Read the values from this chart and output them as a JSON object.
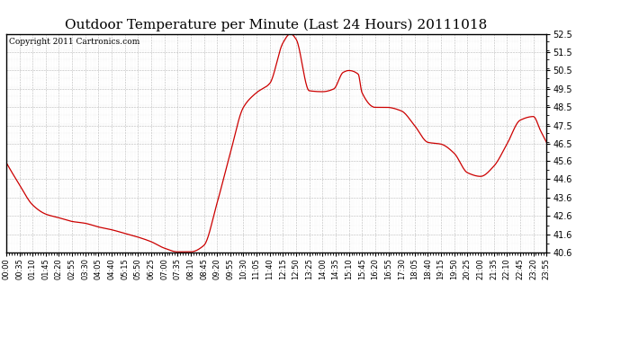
{
  "title": "Outdoor Temperature per Minute (Last 24 Hours) 20111018",
  "copyright": "Copyright 2011 Cartronics.com",
  "line_color": "#cc0000",
  "bg_color": "#ffffff",
  "plot_bg_color": "#ffffff",
  "grid_color": "#b0b0b0",
  "ylim": [
    40.6,
    52.5
  ],
  "yticks": [
    40.6,
    41.6,
    42.6,
    43.6,
    44.6,
    45.6,
    46.5,
    47.5,
    48.5,
    49.5,
    50.5,
    51.5,
    52.5
  ],
  "xtick_labels": [
    "00:00",
    "00:35",
    "01:10",
    "01:45",
    "02:20",
    "02:55",
    "03:30",
    "04:05",
    "04:40",
    "05:15",
    "05:50",
    "06:25",
    "07:00",
    "07:35",
    "08:10",
    "08:45",
    "09:20",
    "09:55",
    "10:30",
    "11:05",
    "11:40",
    "12:15",
    "12:50",
    "13:25",
    "14:00",
    "14:35",
    "15:10",
    "15:45",
    "16:20",
    "16:55",
    "17:30",
    "18:05",
    "18:40",
    "19:15",
    "19:50",
    "20:25",
    "21:00",
    "21:35",
    "22:10",
    "22:45",
    "23:20",
    "23:55"
  ],
  "key_x": [
    0,
    35,
    70,
    105,
    140,
    175,
    210,
    245,
    280,
    315,
    350,
    385,
    420,
    455,
    490,
    525,
    560,
    595,
    630,
    665,
    700,
    735,
    755,
    770,
    805,
    840,
    870,
    895,
    910,
    935,
    945,
    980,
    1010,
    1050,
    1085,
    1120,
    1155,
    1190,
    1225,
    1260,
    1295,
    1330,
    1365,
    1400,
    1420,
    1435
  ],
  "key_y": [
    45.5,
    44.3,
    43.2,
    42.7,
    42.5,
    42.3,
    42.2,
    42.0,
    41.85,
    41.65,
    41.45,
    41.2,
    40.85,
    40.65,
    40.65,
    41.0,
    43.3,
    46.0,
    48.5,
    49.3,
    49.8,
    52.0,
    52.5,
    52.2,
    49.4,
    49.35,
    49.5,
    50.4,
    50.5,
    50.3,
    49.3,
    48.5,
    48.5,
    48.3,
    47.5,
    46.6,
    46.5,
    46.0,
    44.95,
    44.75,
    45.3,
    46.5,
    47.8,
    48.0,
    47.2,
    46.6
  ],
  "title_fontsize": 11,
  "copyright_fontsize": 6.5,
  "ytick_fontsize": 7,
  "xtick_fontsize": 6
}
